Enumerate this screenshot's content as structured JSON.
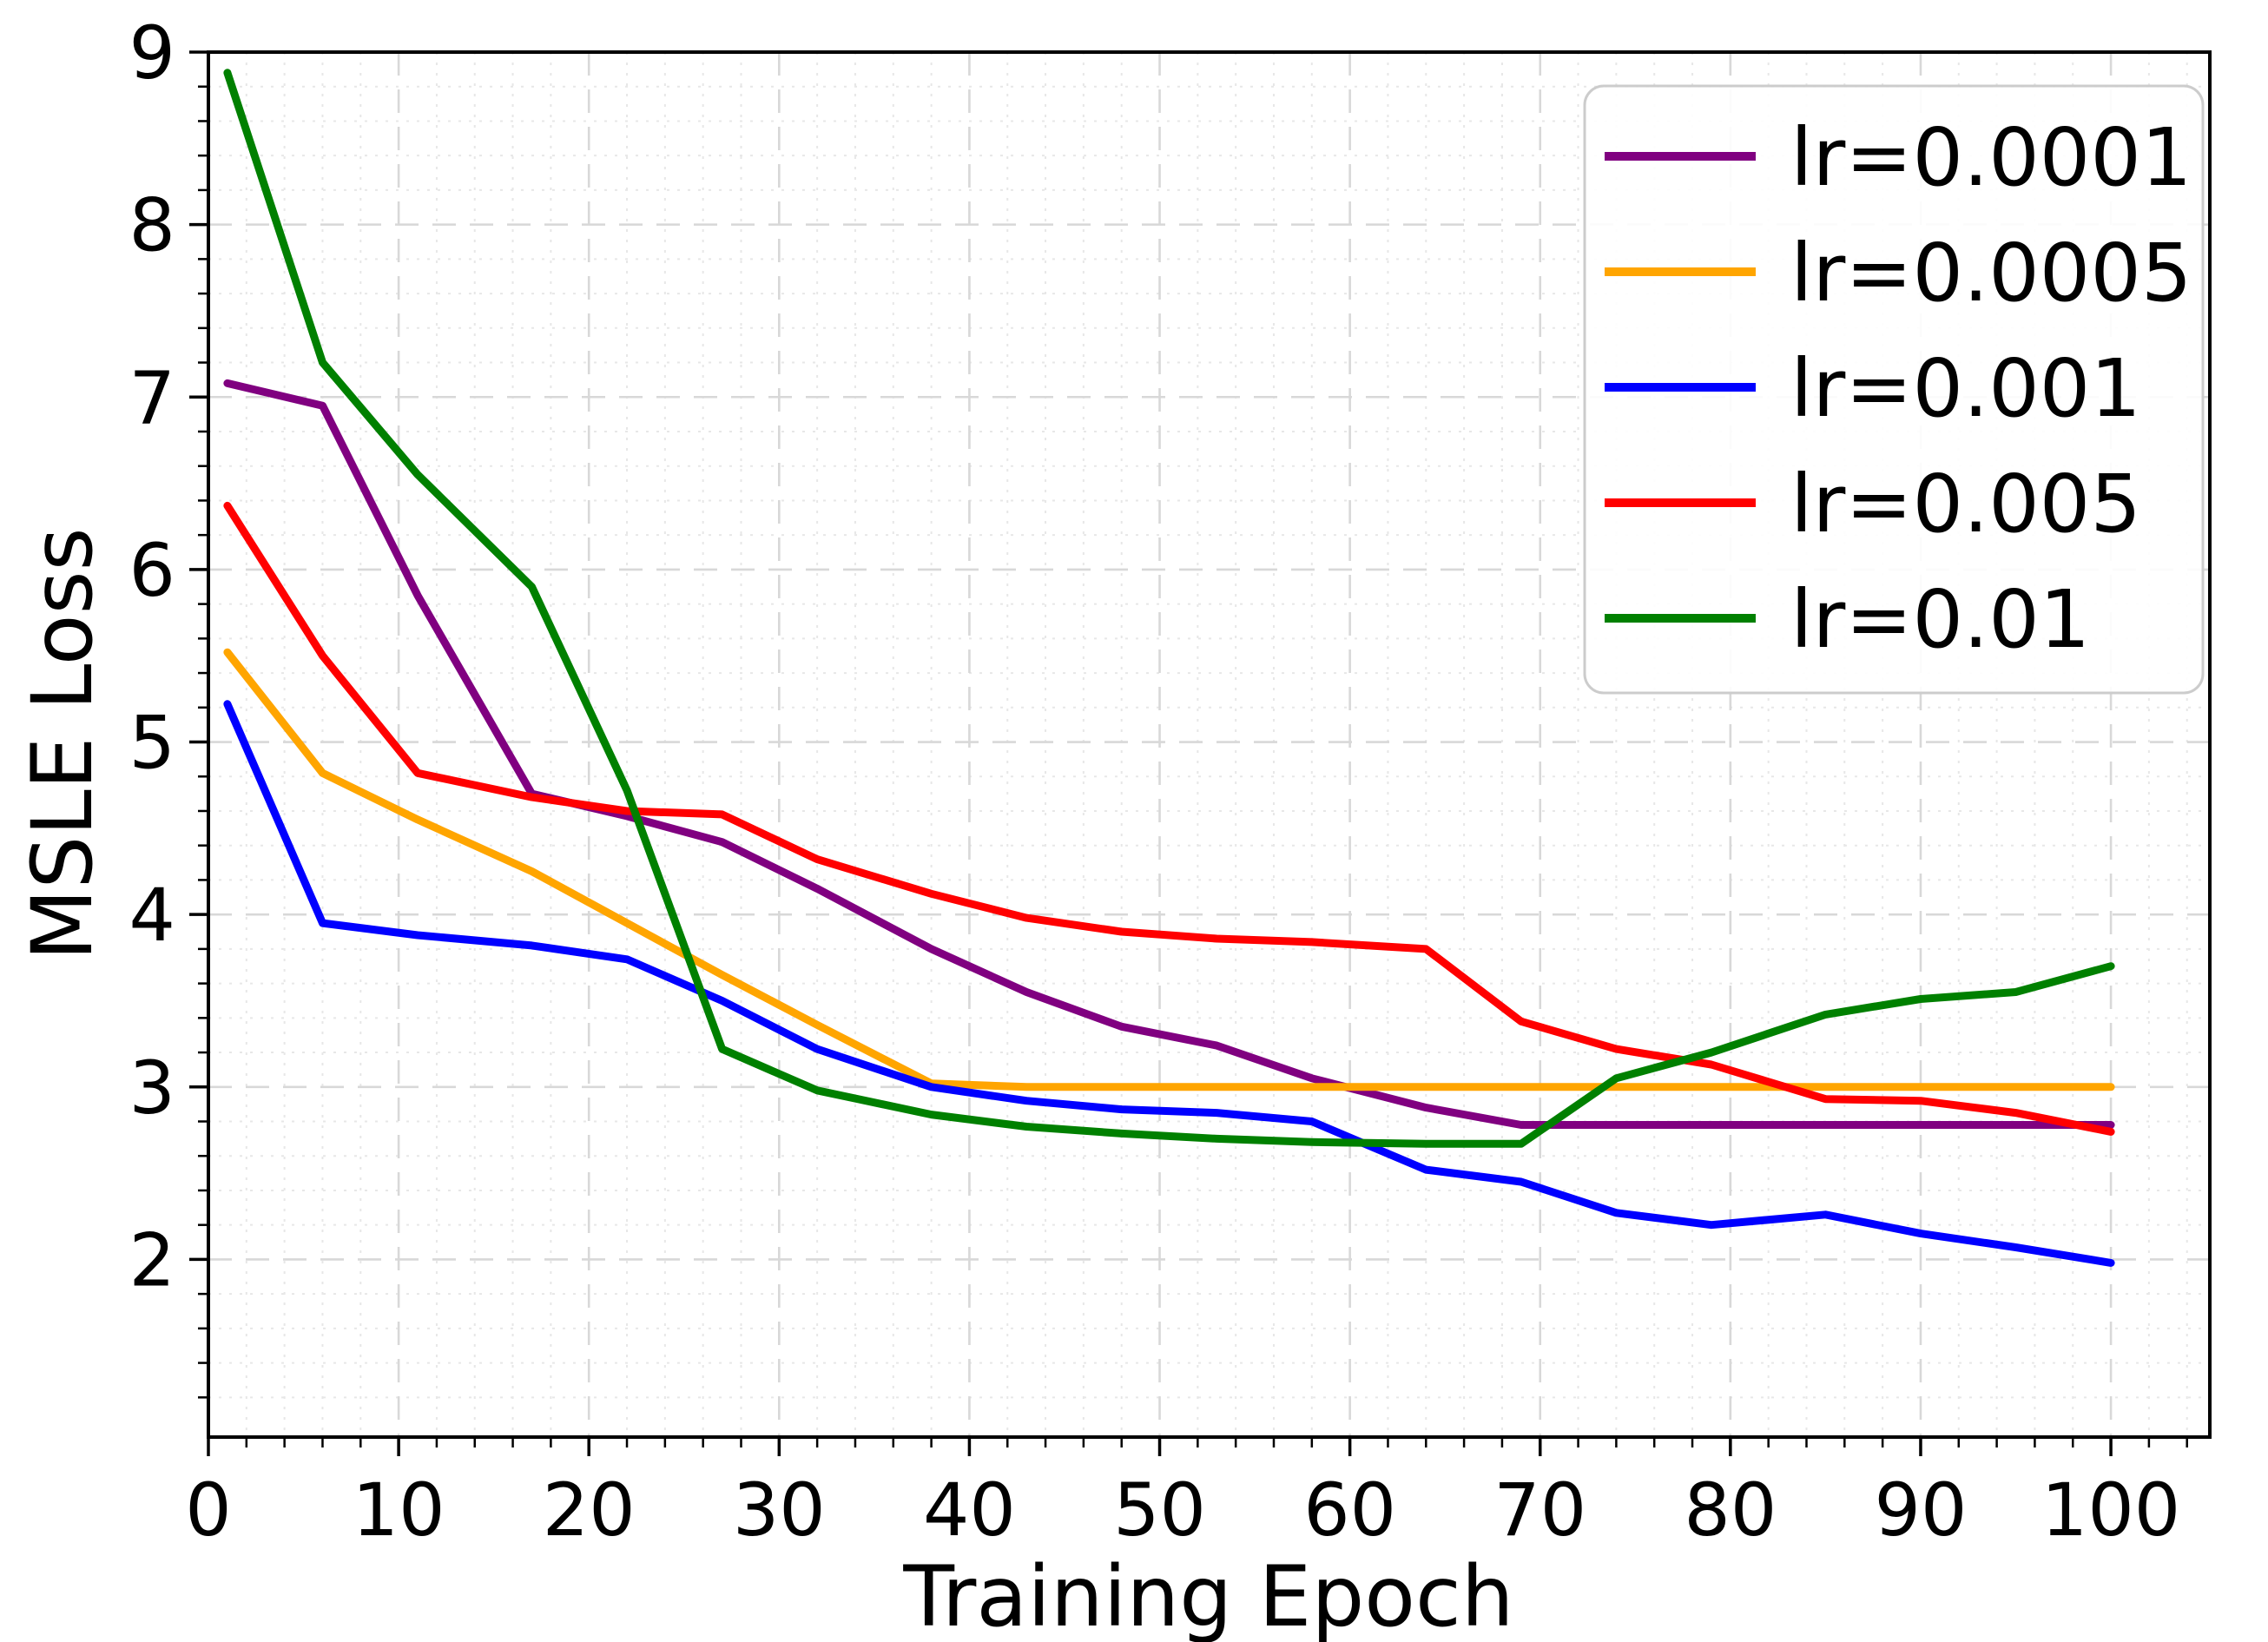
{
  "chart_data": {
    "type": "line",
    "title": "",
    "xlabel": "Training Epoch",
    "ylabel": "MSLE Loss",
    "xlim": [
      0,
      105.2
    ],
    "ylim": [
      0.97,
      9.0
    ],
    "xticks": [
      0,
      10,
      20,
      30,
      40,
      50,
      60,
      70,
      80,
      90,
      100
    ],
    "yticks": [
      2,
      3,
      4,
      5,
      6,
      7,
      8,
      9
    ],
    "x_minor_step": 2,
    "y_minor_step": 0.2,
    "grid": "major-dashed-and-minor-dotted",
    "legend_position": "upper right",
    "x": [
      1,
      6,
      11,
      17,
      22,
      27,
      32,
      38,
      43,
      48,
      53,
      58,
      64,
      69,
      74,
      79,
      85,
      90,
      95,
      100
    ],
    "series": [
      {
        "name": "lr=0.0001",
        "color": "#800080",
        "values": [
          7.08,
          6.95,
          5.85,
          4.7,
          4.57,
          4.42,
          4.15,
          3.8,
          3.55,
          3.35,
          3.24,
          3.05,
          2.88,
          2.78,
          2.78,
          2.78,
          2.78,
          2.78,
          2.78,
          2.78
        ]
      },
      {
        "name": "lr=0.0005",
        "color": "#FFA500",
        "values": [
          5.52,
          4.82,
          4.55,
          4.25,
          3.95,
          3.65,
          3.36,
          3.02,
          3.0,
          3.0,
          3.0,
          3.0,
          3.0,
          3.0,
          3.0,
          3.0,
          3.0,
          3.0,
          3.0,
          3.0
        ]
      },
      {
        "name": "lr=0.001",
        "color": "#0000FF",
        "values": [
          5.22,
          3.95,
          3.88,
          3.82,
          3.74,
          3.5,
          3.22,
          3.0,
          2.92,
          2.87,
          2.85,
          2.8,
          2.52,
          2.45,
          2.27,
          2.2,
          2.26,
          2.15,
          2.07,
          1.98
        ]
      },
      {
        "name": "lr=0.005",
        "color": "#FF0000",
        "values": [
          6.37,
          5.5,
          4.82,
          4.68,
          4.6,
          4.58,
          4.32,
          4.12,
          3.98,
          3.9,
          3.86,
          3.84,
          3.8,
          3.38,
          3.22,
          3.13,
          2.93,
          2.92,
          2.85,
          2.74
        ]
      },
      {
        "name": "lr=0.01",
        "color": "#008000",
        "values": [
          8.88,
          7.2,
          6.55,
          5.9,
          4.72,
          3.22,
          2.98,
          2.84,
          2.77,
          2.73,
          2.7,
          2.68,
          2.67,
          2.67,
          3.05,
          3.2,
          3.42,
          3.51,
          3.55,
          3.7
        ]
      }
    ],
    "style": {
      "line_width": 9,
      "spine_color": "#000000",
      "major_grid_color": "#d8d8d8",
      "minor_grid_color": "#e7e7e7",
      "legend_border_color": "#cccccc",
      "background": "#ffffff"
    }
  }
}
